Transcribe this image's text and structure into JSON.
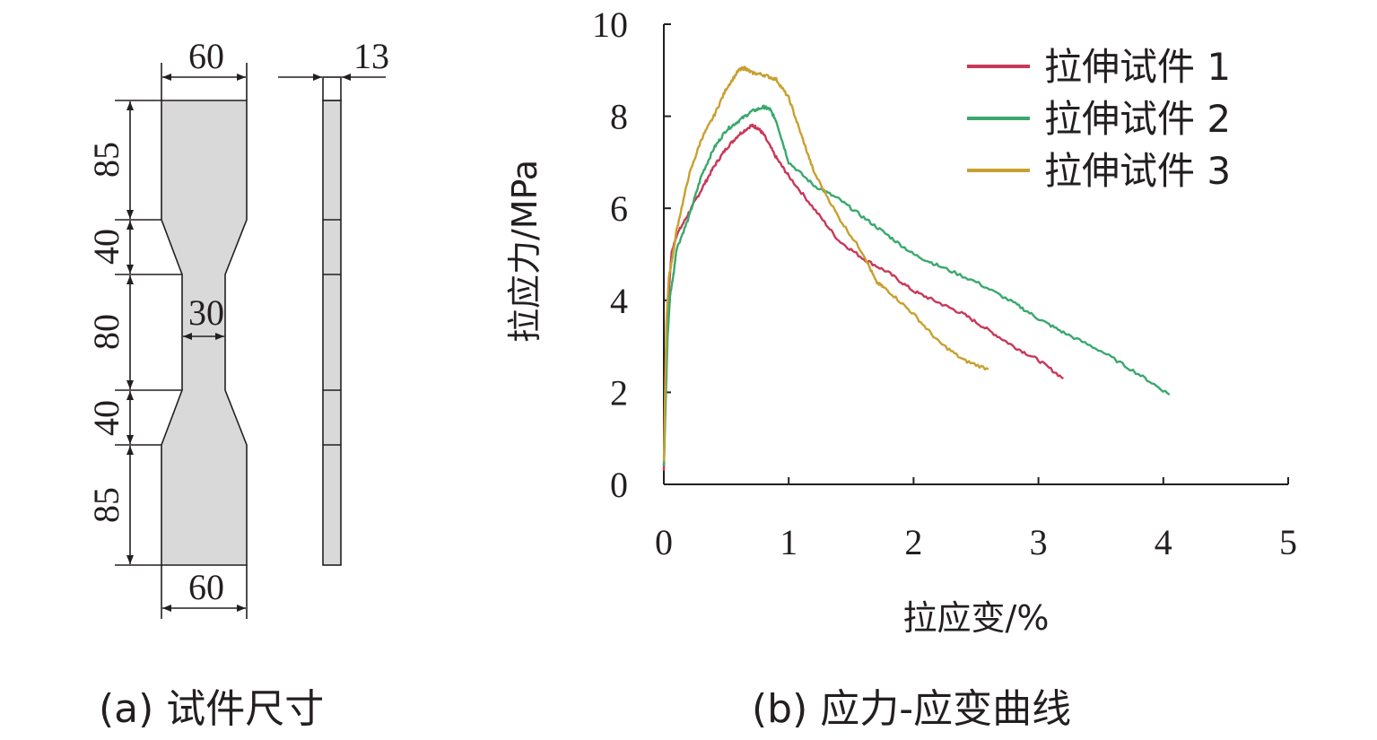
{
  "panel_a": {
    "caption": "(a) 试件尺寸",
    "dimensions": {
      "top_width": "60",
      "bottom_width": "60",
      "thickness": "13",
      "neck_width": "30",
      "seg_grip_top": "85",
      "seg_taper_top": "40",
      "seg_neck": "80",
      "seg_taper_bottom": "40",
      "seg_grip_bottom": "85"
    }
  },
  "panel_b": {
    "caption": "(b) 应力-应变曲线"
  },
  "chart_data": {
    "type": "line",
    "title": "",
    "xlabel": "拉应变/%",
    "ylabel": "拉应力/MPa",
    "xlim": [
      0,
      5
    ],
    "ylim": [
      0,
      10
    ],
    "xticks": [
      "0",
      "1",
      "2",
      "3",
      "4",
      "5"
    ],
    "yticks": [
      "0",
      "2",
      "4",
      "6",
      "8",
      "10"
    ],
    "legend_position": "top-right",
    "series": [
      {
        "name": "拉伸试件 1",
        "color": "#c8385a",
        "x": [
          0.0,
          0.02,
          0.04,
          0.06,
          0.1,
          0.2,
          0.3,
          0.4,
          0.5,
          0.6,
          0.7,
          0.75,
          0.8,
          0.9,
          1.0,
          1.2,
          1.4,
          1.6,
          1.8,
          2.0,
          2.2,
          2.4,
          2.6,
          2.8,
          3.0,
          3.2
        ],
        "y": [
          0.3,
          2.8,
          4.2,
          5.0,
          5.4,
          5.9,
          6.4,
          6.9,
          7.3,
          7.6,
          7.8,
          7.75,
          7.6,
          7.1,
          6.7,
          6.0,
          5.3,
          4.9,
          4.6,
          4.2,
          3.95,
          3.7,
          3.35,
          3.0,
          2.7,
          2.3
        ]
      },
      {
        "name": "拉伸试件 2",
        "color": "#3aa86d",
        "x": [
          0.0,
          0.03,
          0.05,
          0.08,
          0.1,
          0.2,
          0.3,
          0.4,
          0.5,
          0.6,
          0.7,
          0.8,
          0.85,
          0.9,
          1.0,
          1.2,
          1.4,
          1.6,
          1.8,
          2.0,
          2.2,
          2.5,
          2.8,
          3.0,
          3.2,
          3.5,
          3.8,
          4.05
        ],
        "y": [
          0.4,
          3.2,
          4.1,
          4.6,
          5.1,
          5.8,
          6.7,
          7.3,
          7.7,
          7.9,
          8.1,
          8.2,
          8.15,
          7.9,
          7.0,
          6.5,
          6.2,
          5.8,
          5.4,
          5.0,
          4.75,
          4.4,
          3.95,
          3.6,
          3.3,
          2.9,
          2.4,
          1.95
        ]
      },
      {
        "name": "拉伸试件 3",
        "color": "#c8a030",
        "x": [
          0.0,
          0.02,
          0.04,
          0.08,
          0.1,
          0.2,
          0.3,
          0.4,
          0.5,
          0.6,
          0.65,
          0.7,
          0.8,
          0.9,
          1.0,
          1.1,
          1.2,
          1.4,
          1.6,
          1.7,
          1.8,
          2.0,
          2.2,
          2.4,
          2.6
        ],
        "y": [
          0.5,
          3.5,
          4.5,
          5.1,
          5.5,
          6.7,
          7.5,
          8.0,
          8.6,
          9.0,
          9.05,
          8.95,
          8.9,
          8.8,
          8.4,
          7.6,
          6.8,
          5.8,
          5.0,
          4.4,
          4.2,
          3.7,
          3.1,
          2.7,
          2.5
        ]
      }
    ]
  }
}
